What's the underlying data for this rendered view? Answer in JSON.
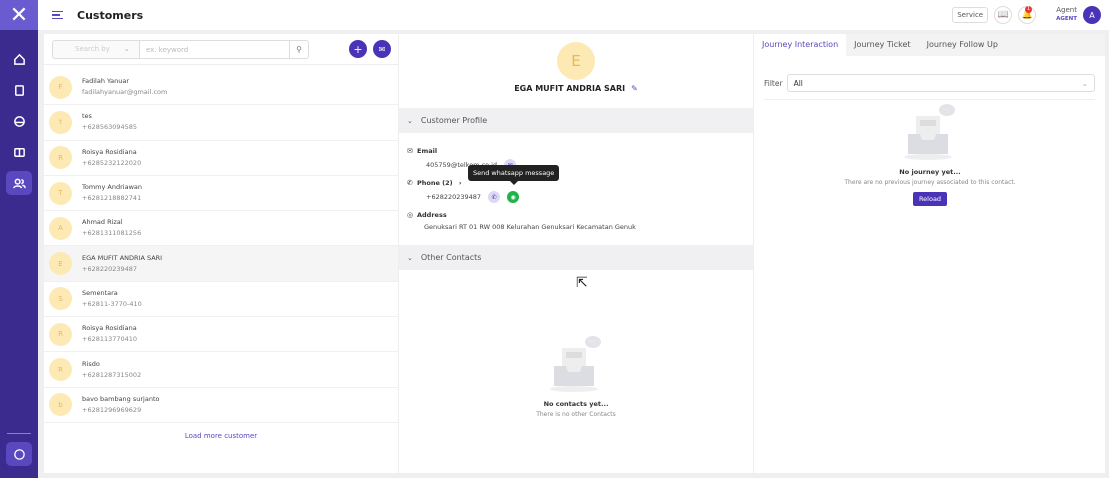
{
  "app": {
    "title": "Customers",
    "logo": "X"
  },
  "sidebar": {
    "items": [
      "home-icon",
      "document-icon",
      "inbox-icon",
      "ticket-icon",
      "customers-icon"
    ],
    "active": "customers-icon",
    "bottom": "chat-icon"
  },
  "header": {
    "service": "Service",
    "notification_count": "1",
    "agent_name": "Agent",
    "agent_role": "AGENT",
    "avatar": "A"
  },
  "search": {
    "search_by_placeholder": "Search by",
    "keyword_placeholder": "ex. keyword"
  },
  "customers": [
    {
      "initial": "F",
      "name": "Fadilah Yanuar",
      "sub": "fadilahyanuar@gmail.com"
    },
    {
      "initial": "t",
      "name": "tes",
      "sub": "+628563094585"
    },
    {
      "initial": "R",
      "name": "Roisya Rosidiana",
      "sub": "+6285232122020"
    },
    {
      "initial": "T",
      "name": "Tommy Andriawan",
      "sub": "+6281218882741"
    },
    {
      "initial": "A",
      "name": "Ahmad Rizal",
      "sub": "+6281311081256"
    },
    {
      "initial": "E",
      "name": "EGA MUFIT ANDRIA SARI",
      "sub": "+628220239487",
      "selected": true
    },
    {
      "initial": "S",
      "name": "Sementara",
      "sub": "+62811-3770-410"
    },
    {
      "initial": "R",
      "name": "Roisya Rosidiana",
      "sub": "+628113770410"
    },
    {
      "initial": "R",
      "name": "Risdo",
      "sub": "+6281287315002"
    },
    {
      "initial": "b",
      "name": "bavo bambang surjanto",
      "sub": "+6281296969629"
    }
  ],
  "load_more": "Load more customer",
  "profile": {
    "initial": "E",
    "name": "EGA MUFIT ANDRIA SARI",
    "section_profile": "Customer Profile",
    "email_label": "Email",
    "email": "405759@telkom.co.id",
    "phone_label": "Phone (2)",
    "phone": "+628220239487",
    "address_label": "Address",
    "address": "Genuksari RT 01 RW 008 Kelurahan Genuksari Kecamatan Genuk",
    "tooltip": "Send whatsapp message",
    "section_other": "Other Contacts",
    "empty_title": "No contacts yet...",
    "empty_sub": "There is no other Contacts"
  },
  "journey": {
    "tabs": [
      "Journey Interaction",
      "Journey Ticket",
      "Journey Follow Up"
    ],
    "active_tab": 0,
    "filter_label": "Filter",
    "filter_value": "All",
    "empty_title": "No journey yet...",
    "empty_sub": "There are no previous journey associated to this contact.",
    "reload": "Reload"
  },
  "colors": {
    "primary": "#4b33b8",
    "sidebar": "#3c2b8e",
    "whatsapp": "#22b24c",
    "avatar_bg": "#fde9b3"
  }
}
